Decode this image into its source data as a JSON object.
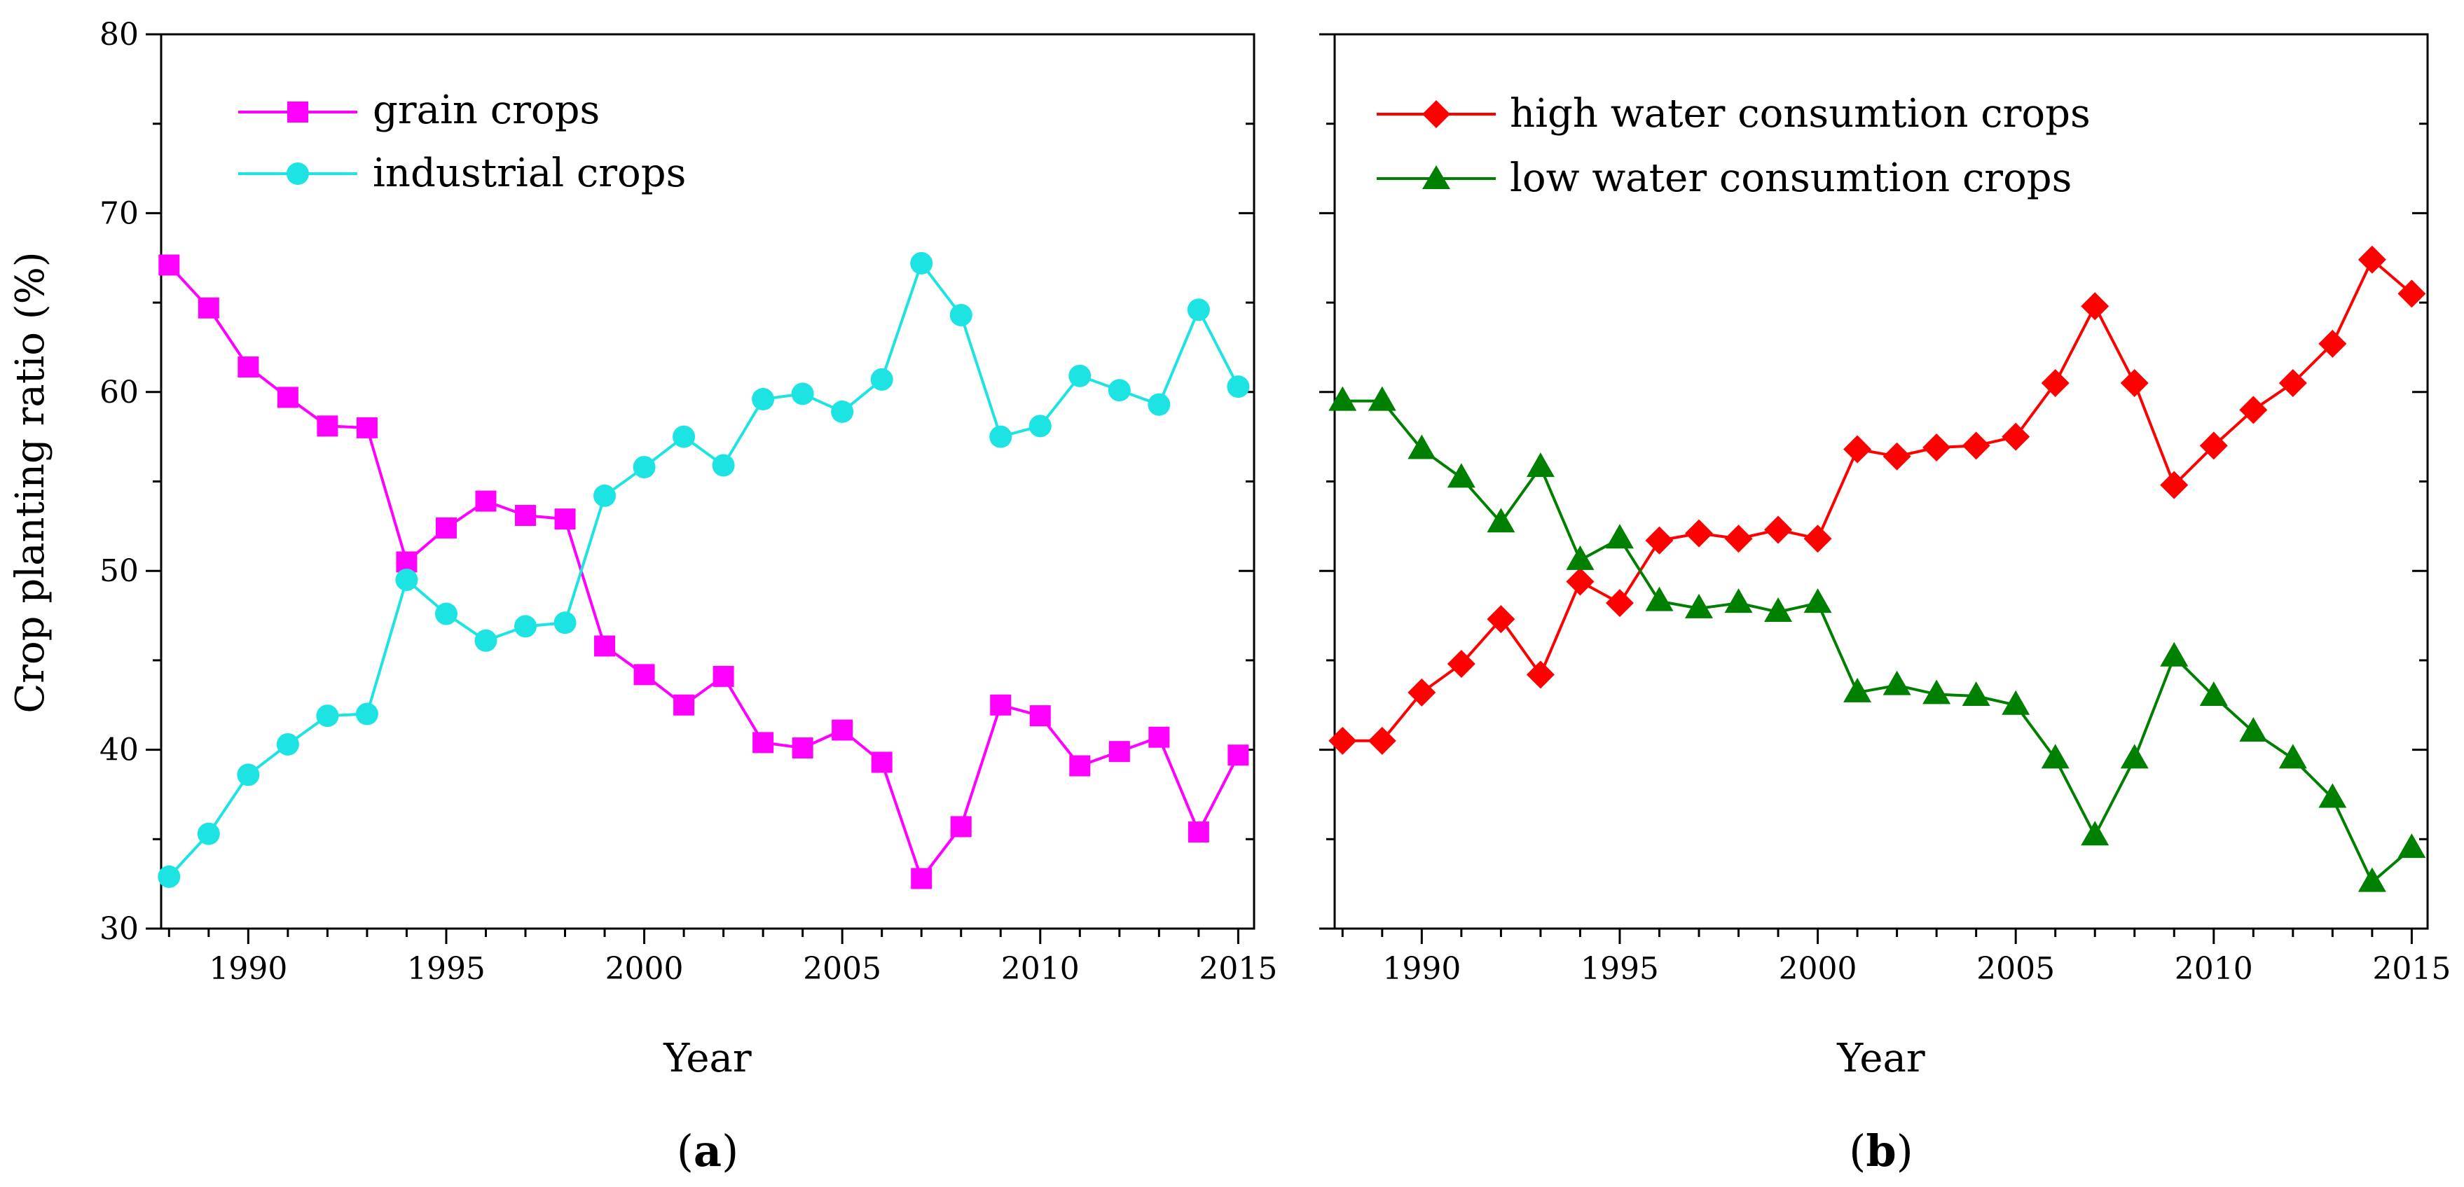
{
  "chart_data": [
    {
      "type": "line",
      "panel": "a",
      "panel_label": "a",
      "xlabel": "Year",
      "ylabel": "Crop planting ratio (%)",
      "xlim": [
        1987.8,
        2015.4
      ],
      "ylim": [
        30,
        80
      ],
      "x_ticks": [
        1990,
        1995,
        2000,
        2005,
        2010,
        2015
      ],
      "y_ticks": [
        30,
        40,
        50,
        60,
        70,
        80
      ],
      "legend_position": "top-left",
      "x": [
        1988,
        1989,
        1990,
        1991,
        1992,
        1993,
        1994,
        1995,
        1996,
        1997,
        1998,
        1999,
        2000,
        2001,
        2002,
        2003,
        2004,
        2005,
        2006,
        2007,
        2008,
        2009,
        2010,
        2011,
        2012,
        2013,
        2014,
        2015
      ],
      "series": [
        {
          "name": "grain crops",
          "color": "#ff00ff",
          "marker": "square",
          "values": [
            67.1,
            64.7,
            61.4,
            59.7,
            58.1,
            58.0,
            50.5,
            52.4,
            53.9,
            53.1,
            52.9,
            45.8,
            44.2,
            42.5,
            44.1,
            40.4,
            40.1,
            41.1,
            39.3,
            32.8,
            35.7,
            42.5,
            41.9,
            39.1,
            39.9,
            40.7,
            35.4,
            39.7
          ]
        },
        {
          "name": "industrial crops",
          "color": "#1ee3e3",
          "marker": "circle",
          "values": [
            32.9,
            35.3,
            38.6,
            40.3,
            41.9,
            42.0,
            49.5,
            47.6,
            46.1,
            46.9,
            47.1,
            54.2,
            55.8,
            57.5,
            55.9,
            59.6,
            59.9,
            58.9,
            60.7,
            67.2,
            64.3,
            57.5,
            58.1,
            60.9,
            60.1,
            59.3,
            64.6,
            60.3
          ]
        }
      ]
    },
    {
      "type": "line",
      "panel": "b",
      "panel_label": "b",
      "xlabel": "Year",
      "ylabel": "",
      "xlim": [
        1987.8,
        2015.4
      ],
      "ylim": [
        30,
        80
      ],
      "x_ticks": [
        1990,
        1995,
        2000,
        2005,
        2010,
        2015
      ],
      "y_ticks": [
        30,
        40,
        50,
        60,
        70,
        80
      ],
      "legend_position": "top-left",
      "x": [
        1988,
        1989,
        1990,
        1991,
        1992,
        1993,
        1994,
        1995,
        1996,
        1997,
        1998,
        1999,
        2000,
        2001,
        2002,
        2003,
        2004,
        2005,
        2006,
        2007,
        2008,
        2009,
        2010,
        2011,
        2012,
        2013,
        2014,
        2015
      ],
      "series": [
        {
          "name": "high water consumtion crops",
          "color": "#ff0000",
          "marker": "diamond",
          "values": [
            40.5,
            40.5,
            43.2,
            44.8,
            47.3,
            44.2,
            49.4,
            48.2,
            51.7,
            52.1,
            51.8,
            52.3,
            51.8,
            56.8,
            56.4,
            56.9,
            57.0,
            57.5,
            60.5,
            64.8,
            60.5,
            54.8,
            57.0,
            59.0,
            60.5,
            62.7,
            67.4,
            65.5
          ]
        },
        {
          "name": "low water consumtion crops",
          "color": "#008000",
          "marker": "triangle",
          "values": [
            59.5,
            59.5,
            56.8,
            55.2,
            52.7,
            55.8,
            50.6,
            51.8,
            48.3,
            47.9,
            48.2,
            47.7,
            48.2,
            43.2,
            43.6,
            43.1,
            43.0,
            42.5,
            39.5,
            35.2,
            39.5,
            45.2,
            43.0,
            41.0,
            39.5,
            37.3,
            32.6,
            34.5
          ]
        }
      ]
    }
  ]
}
